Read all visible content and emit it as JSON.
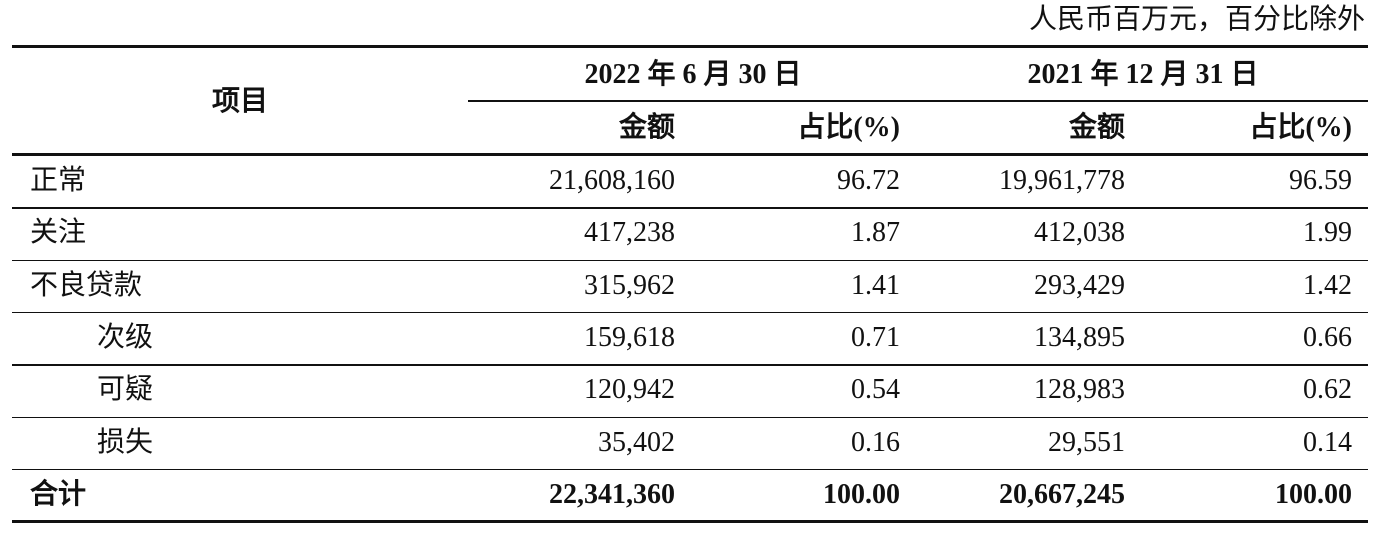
{
  "note": "人民币百万元，百分比除外",
  "header": {
    "item": "项目",
    "period1": "2022 年 6 月 30 日",
    "period2": "2021 年 12 月 31 日",
    "amount1": "金额",
    "share1": "占比(%)",
    "amount2": "金额",
    "share2": "占比(%)"
  },
  "rows": [
    [
      "正常",
      "21,608,160",
      "96.72",
      "19,961,778",
      "96.59"
    ],
    [
      "关注",
      "417,238",
      "1.87",
      "412,038",
      "1.99"
    ],
    [
      "不良贷款",
      "315,962",
      "1.41",
      "293,429",
      "1.42"
    ],
    [
      "次级",
      "159,618",
      "0.71",
      "134,895",
      "0.66"
    ],
    [
      "可疑",
      "120,942",
      "0.54",
      "128,983",
      "0.62"
    ],
    [
      "损失",
      "35,402",
      "0.16",
      "29,551",
      "0.14"
    ]
  ],
  "total": [
    "合计",
    "22,341,360",
    "100.00",
    "20,667,245",
    "100.00"
  ]
}
